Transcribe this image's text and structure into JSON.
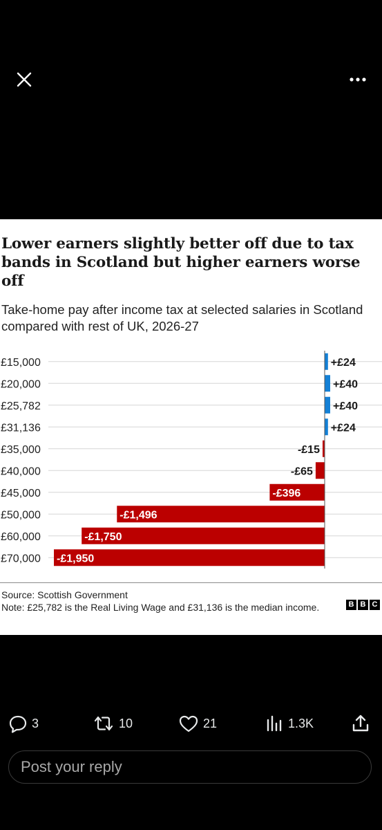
{
  "viewer": {
    "close_icon": "close-icon",
    "more_icon": "more-options-icon"
  },
  "chart_card": {
    "title": "Lower earners slightly better off due to tax bands in Scotland but higher earners worse off",
    "subtitle": "Take-home pay after income tax at selected salaries in Scotland compared with rest of UK, 2026-27",
    "source": "Source: Scottish Government",
    "note": "Note: £25,782 is the Real Living Wage and £31,136 is the median income.",
    "logo_letters": [
      "B",
      "B",
      "C"
    ]
  },
  "chart_data": {
    "type": "bar",
    "orientation": "horizontal",
    "title": "Lower earners slightly better off due to tax bands in Scotland but higher earners worse off",
    "subtitle": "Take-home pay after income tax at selected salaries in Scotland compared with rest of UK, 2026-27",
    "categories": [
      "£15,000",
      "£20,000",
      "£25,782",
      "£31,136",
      "£35,000",
      "£40,000",
      "£45,000",
      "£50,000",
      "£60,000",
      "£70,000"
    ],
    "values": [
      24,
      40,
      40,
      24,
      -15,
      -65,
      -396,
      -1496,
      -1750,
      -1950
    ],
    "value_labels": [
      "+£24",
      "+£40",
      "+£40",
      "+£24",
      "-£15",
      "-£65",
      "-£396",
      "-£1,496",
      "-£1,750",
      "-£1,950"
    ],
    "positive_color": "#1380d6",
    "negative_color": "#bb0000",
    "grid": true
  },
  "actions": {
    "reply_count": "3",
    "repost_count": "10",
    "like_count": "21",
    "views_count": "1.3K"
  },
  "reply": {
    "placeholder": "Post your reply"
  },
  "colors": {
    "background": "#000000",
    "card": "#ffffff",
    "text_light": "#e7e9ea"
  }
}
